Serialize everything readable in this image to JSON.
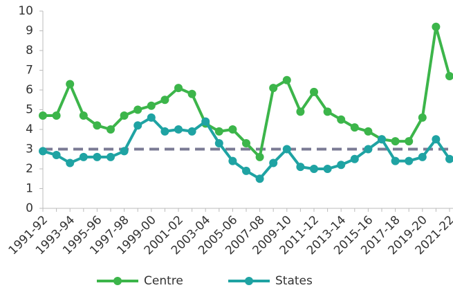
{
  "chart_data": {
    "type": "line",
    "categories": [
      "1991-92",
      null,
      "1993-94",
      null,
      "1995-96",
      null,
      "1997-98",
      null,
      "1999-00",
      null,
      "2001-02",
      null,
      "2003-04",
      null,
      "2005-06",
      null,
      "2007-08",
      null,
      "2009-10",
      null,
      "2011-12",
      null,
      "2013-14",
      null,
      "2015-16",
      null,
      "2017-18",
      null,
      "2019-20",
      null,
      "2021-22"
    ],
    "series": [
      {
        "name": "Centre",
        "color": "#3cb54a",
        "values": [
          4.7,
          4.7,
          6.3,
          4.7,
          4.2,
          4.0,
          4.7,
          5.0,
          5.2,
          5.5,
          6.1,
          5.8,
          4.3,
          3.9,
          4.0,
          3.3,
          2.6,
          6.1,
          6.5,
          4.9,
          5.9,
          4.9,
          4.5,
          4.1,
          3.9,
          3.5,
          3.4,
          3.4,
          4.6,
          9.2,
          6.7
        ]
      },
      {
        "name": "States",
        "color": "#1fa3a3",
        "values": [
          2.9,
          2.7,
          2.3,
          2.6,
          2.6,
          2.6,
          2.9,
          4.2,
          4.6,
          3.9,
          4.0,
          3.9,
          4.4,
          3.3,
          2.4,
          1.9,
          1.5,
          2.3,
          3.0,
          2.1,
          2.0,
          2.0,
          2.2,
          2.5,
          3.0,
          3.5,
          2.4,
          2.4,
          2.6,
          3.5,
          2.5
        ]
      }
    ],
    "reference_line": {
      "value": 3,
      "color": "#7a7a94",
      "dashed": true
    },
    "ylim": [
      0,
      10
    ],
    "yticks": [
      0,
      1,
      2,
      3,
      4,
      5,
      6,
      7,
      8,
      9,
      10
    ],
    "grid": false,
    "legend": "bottom"
  }
}
